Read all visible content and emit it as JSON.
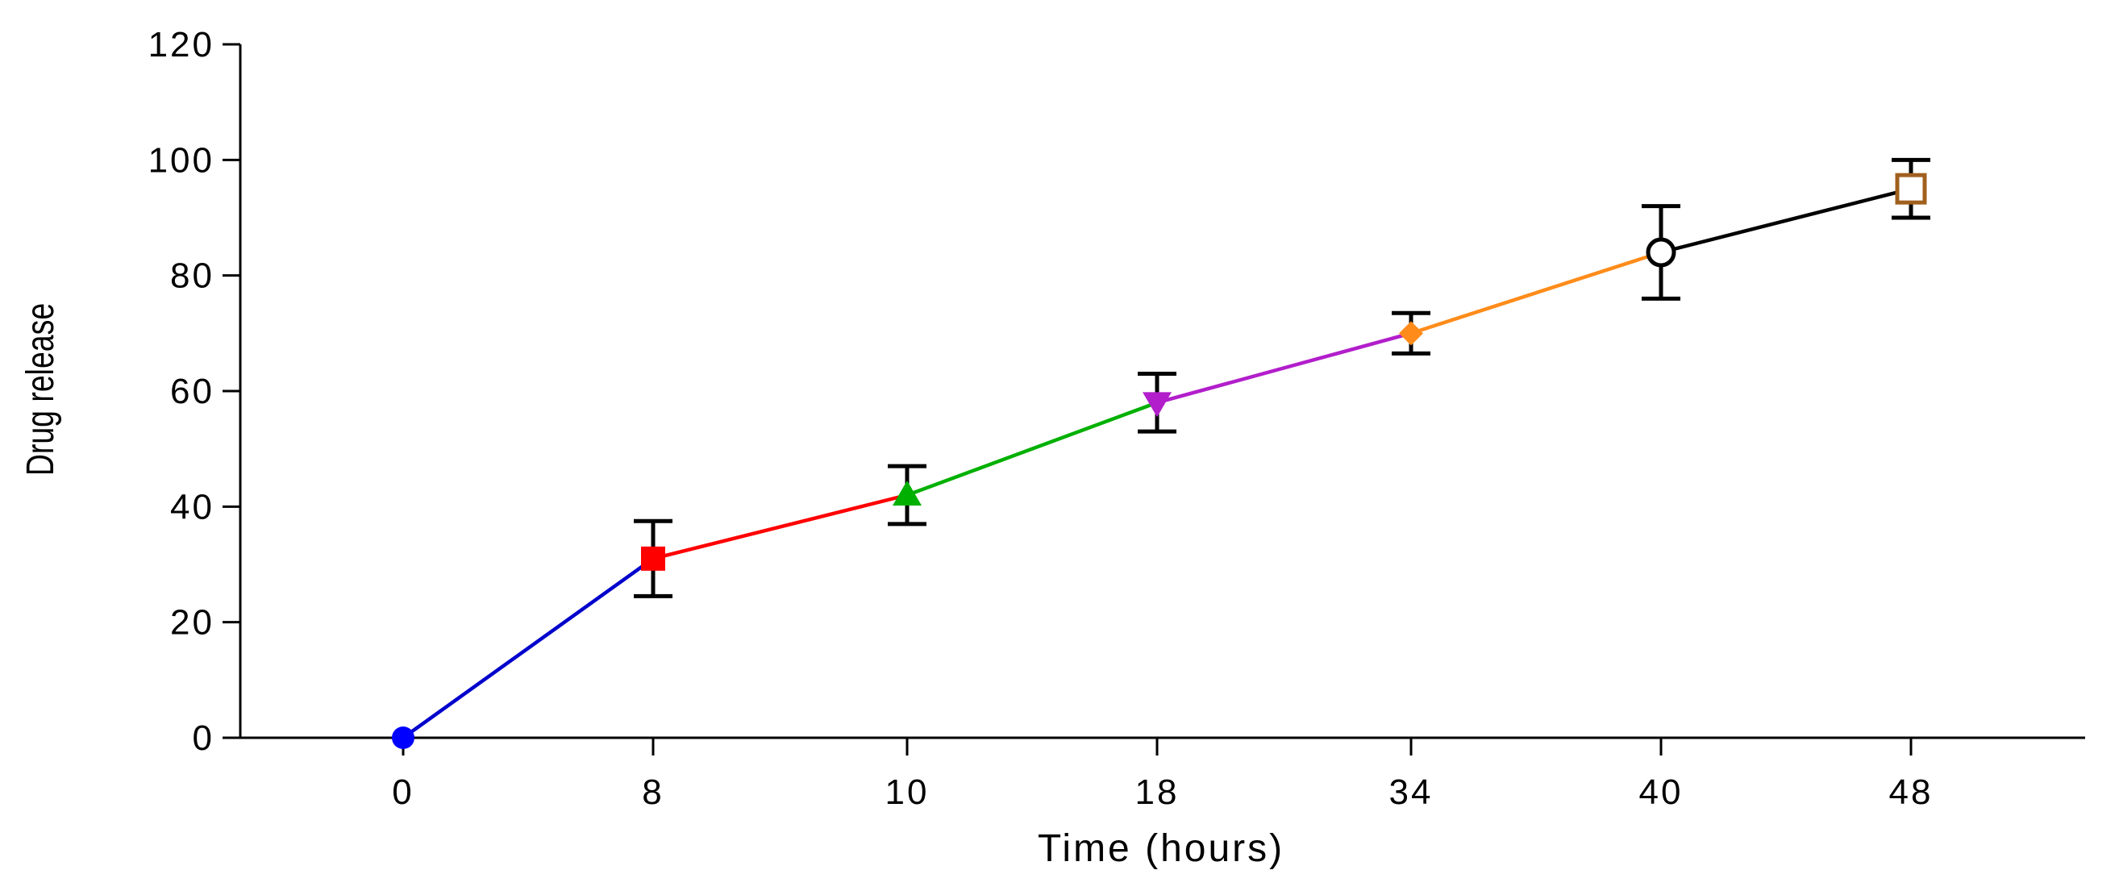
{
  "chart_data": {
    "type": "line",
    "title": "",
    "xlabel": "Time (hours)",
    "ylabel": "Drug release",
    "ylim": [
      0,
      120
    ],
    "yticks": [
      0,
      20,
      40,
      60,
      80,
      100,
      120
    ],
    "x": [
      "0",
      "8",
      "10",
      "18",
      "34",
      "40",
      "48"
    ],
    "grid": false,
    "legend": "none",
    "points": [
      {
        "x": "0",
        "y": 0,
        "err": 0,
        "marker": "circle",
        "color": "#0000ff"
      },
      {
        "x": "8",
        "y": 31,
        "err": 6.5,
        "marker": "square",
        "color": "#ff0000"
      },
      {
        "x": "10",
        "y": 42,
        "err": 5,
        "marker": "triangle-up",
        "color": "#00b000"
      },
      {
        "x": "18",
        "y": 58,
        "err": 5,
        "marker": "triangle-down",
        "color": "#b21ecb"
      },
      {
        "x": "34",
        "y": 70,
        "err": 3.5,
        "marker": "diamond",
        "color": "#ff8c1a"
      },
      {
        "x": "40",
        "y": 84,
        "err": 8,
        "marker": "circle-open",
        "color": "#000000"
      },
      {
        "x": "48",
        "y": 95,
        "err": 5,
        "marker": "square-open",
        "color": "#a0601e"
      }
    ],
    "segments": [
      {
        "from": "0",
        "to": "8",
        "color": "#0000cc"
      },
      {
        "from": "8",
        "to": "10",
        "color": "#ff0000"
      },
      {
        "from": "10",
        "to": "18",
        "color": "#00b000"
      },
      {
        "from": "18",
        "to": "34",
        "color": "#b21ecb"
      },
      {
        "from": "34",
        "to": "40",
        "color": "#ff8c1a"
      },
      {
        "from": "40",
        "to": "48",
        "color": "#000000"
      }
    ],
    "error_bar_color": "#000000"
  }
}
